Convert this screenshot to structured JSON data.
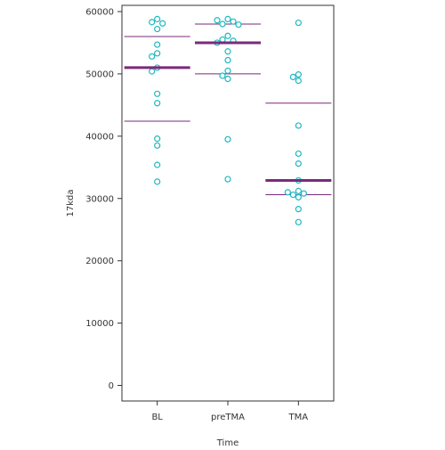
{
  "chart_data": {
    "type": "scatter",
    "xlabel": "Time",
    "ylabel": "17kda",
    "categories": [
      "BL",
      "preTMA",
      "TMA"
    ],
    "ylim": [
      -2500,
      61000
    ],
    "yticks": [
      0,
      10000,
      20000,
      30000,
      40000,
      50000,
      60000
    ],
    "ytick_labels": [
      "0",
      "10000",
      "20000",
      "30000",
      "40000",
      "50000",
      "60000"
    ],
    "grid": false,
    "legend": "none",
    "colors": {
      "points": "#1fb8c0",
      "median": "#7a2a7a",
      "quartile": "#7a2a7a",
      "frame": "#333333"
    },
    "groups": [
      {
        "category": "BL",
        "points": [
          58800,
          58300,
          58100,
          57200,
          54700,
          53300,
          52800,
          51000,
          50400,
          46800,
          45300,
          39600,
          38500,
          35400,
          32700
        ],
        "median": 51000,
        "q1": 42400,
        "q3": 56000
      },
      {
        "category": "preTMA",
        "points": [
          58800,
          58600,
          58400,
          58000,
          57900,
          56100,
          55500,
          55300,
          55000,
          53600,
          52200,
          50500,
          49700,
          49200,
          39500,
          33100
        ],
        "median": 55000,
        "q1": 50000,
        "q3": 58000
      },
      {
        "category": "TMA",
        "points": [
          58200,
          49900,
          49500,
          48900,
          41700,
          37200,
          35600,
          32900,
          31200,
          31000,
          30800,
          30600,
          30200,
          28300,
          26200
        ],
        "median": 32900,
        "q1": 30600,
        "q3": 45300
      }
    ]
  }
}
